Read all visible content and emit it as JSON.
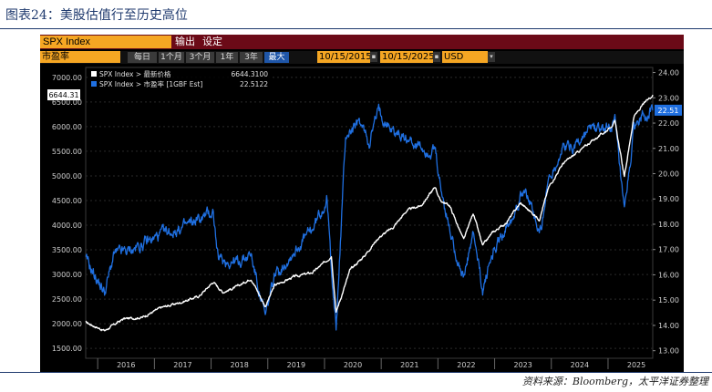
{
  "figure_title": "图表24：美股估值行至历史高位",
  "source_note": "资料来源：Bloomberg，太平洋证券整理",
  "terminal": {
    "ticker": "SPX Index",
    "menu_output": "输出",
    "menu_settings": "设定",
    "field": "市盈率",
    "ranges": [
      "每日",
      "1个月",
      "3个月",
      "1年",
      "3年",
      "最大"
    ],
    "active_range": "最大",
    "start_date": "10/15/2015",
    "end_date": "10/15/2025",
    "currency": "USD"
  },
  "colors": {
    "price_series": "#ffffff",
    "pe_series": "#1f6fe0",
    "accent": "#f5a623",
    "banner": "#6b0a17"
  },
  "chart_data": {
    "type": "line",
    "title": "",
    "xlabel": "",
    "ylabel": "",
    "x_ticks": [
      "2016",
      "2017",
      "2018",
      "2019",
      "2020",
      "2021",
      "2022",
      "2023",
      "2024",
      "2025"
    ],
    "x_range": [
      "2015-10-15",
      "2025-10-15"
    ],
    "ylim_left": [
      1300,
      7200
    ],
    "yticks_left": [
      "7000.00",
      "6500.00",
      "6000.00",
      "5500.00",
      "5000.00",
      "4500.00",
      "4000.00",
      "3500.00",
      "3000.00",
      "2500.00",
      "2000.00",
      "1500.00"
    ],
    "ylim_right": [
      12.7,
      24.2
    ],
    "yticks_right": [
      "24.00",
      "23.00",
      "22.00",
      "21.00",
      "20.00",
      "19.00",
      "18.00",
      "17.00",
      "16.00",
      "15.00",
      "14.00",
      "13.00"
    ],
    "legend": [
      {
        "label": "SPX Index > 最新价格",
        "value": "6644.3100"
      },
      {
        "label": "SPX Index > 市盈率 [1GBF Est]",
        "value": "22.5122"
      }
    ],
    "last_value_tags": {
      "price": "6644.31",
      "pe": "22.51"
    },
    "series": [
      {
        "name": "SPX Index > 最新价格",
        "axis": "left",
        "x": [
          "2015-10",
          "2016-02",
          "2016-06",
          "2016-10",
          "2017-02",
          "2017-06",
          "2017-10",
          "2018-01",
          "2018-03",
          "2018-06",
          "2018-09",
          "2018-12",
          "2019-02",
          "2019-06",
          "2019-10",
          "2020-01",
          "2020-02",
          "2020-03",
          "2020-06",
          "2020-09",
          "2020-12",
          "2021-03",
          "2021-06",
          "2021-09",
          "2021-12",
          "2022-01",
          "2022-03",
          "2022-06",
          "2022-08",
          "2022-10",
          "2022-12",
          "2023-03",
          "2023-06",
          "2023-10",
          "2023-12",
          "2024-03",
          "2024-06",
          "2024-09",
          "2024-12",
          "2025-02",
          "2025-04",
          "2025-06",
          "2025-08",
          "2025-10"
        ],
        "values": [
          2030,
          1860,
          2100,
          2130,
          2330,
          2430,
          2560,
          2850,
          2640,
          2750,
          2920,
          2350,
          2780,
          2950,
          3040,
          3280,
          3380,
          2240,
          3100,
          3380,
          3750,
          3950,
          4300,
          4400,
          4780,
          4500,
          4400,
          3700,
          4250,
          3580,
          3840,
          4050,
          4450,
          4120,
          4770,
          5250,
          5470,
          5700,
          5900,
          6100,
          4980,
          6200,
          6450,
          6644
        ]
      },
      {
        "name": "SPX Index > 市盈率 [1GBF Est]",
        "axis": "right",
        "x": [
          "2015-10",
          "2016-02",
          "2016-04",
          "2016-08",
          "2016-11",
          "2017-02",
          "2017-06",
          "2017-10",
          "2018-01",
          "2018-02",
          "2018-06",
          "2018-09",
          "2018-12",
          "2019-02",
          "2019-06",
          "2019-10",
          "2020-01",
          "2020-03",
          "2020-05",
          "2020-08",
          "2020-10",
          "2020-12",
          "2021-03",
          "2021-06",
          "2021-09",
          "2021-12",
          "2022-01",
          "2022-03",
          "2022-06",
          "2022-08",
          "2022-10",
          "2022-12",
          "2023-03",
          "2023-07",
          "2023-10",
          "2023-12",
          "2024-03",
          "2024-06",
          "2024-09",
          "2024-12",
          "2025-02",
          "2025-04",
          "2025-06",
          "2025-08",
          "2025-10"
        ],
        "values": [
          16.6,
          15.3,
          16.8,
          17.0,
          17.3,
          17.6,
          17.8,
          18.2,
          18.5,
          16.6,
          16.5,
          16.8,
          14.3,
          16.0,
          16.9,
          17.8,
          19.0,
          13.8,
          21.5,
          22.0,
          21.3,
          22.5,
          21.7,
          21.4,
          21.0,
          20.8,
          19.5,
          17.8,
          15.8,
          17.6,
          15.4,
          16.8,
          17.9,
          19.5,
          17.5,
          19.8,
          21.0,
          21.2,
          21.8,
          21.7,
          22.0,
          18.3,
          21.7,
          22.4,
          22.5
        ]
      }
    ]
  }
}
